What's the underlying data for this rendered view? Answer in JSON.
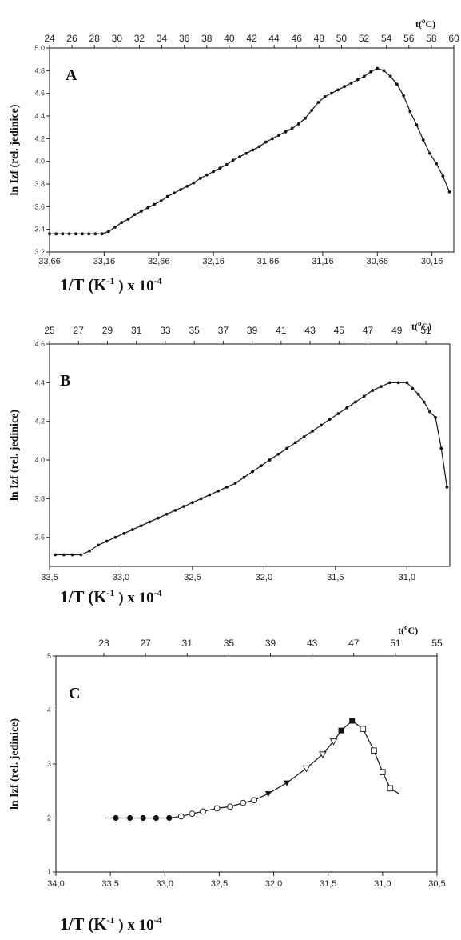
{
  "chart_data": [
    {
      "type": "scatter",
      "panel_label": "A",
      "ylabel": "ln Izf (rel. jedinice)",
      "xlabel": "1/T  (K",
      "xlabel_unit": "-1",
      "xlabel_scale": " ) x 10",
      "xlabel_exp": "-4",
      "top_axis_title": "t(",
      "top_axis_title_sup": "o",
      "top_axis_title_end": "C)",
      "x_tick_labels": [
        "33,66",
        "33,16",
        "32,66",
        "32,16",
        "31,66",
        "31,16",
        "30,66",
        "30,16"
      ],
      "x_ticks": [
        33.66,
        33.16,
        32.66,
        32.16,
        31.66,
        31.16,
        30.66,
        30.16
      ],
      "xlim": [
        33.66,
        29.96
      ],
      "y_tick_labels": [
        "3.2",
        "3.4",
        "3.6",
        "3.8",
        "4.0",
        "4.2",
        "4.4",
        "4.6",
        "4.8",
        "5.0"
      ],
      "y_ticks": [
        3.2,
        3.4,
        3.6,
        3.8,
        4.0,
        4.2,
        4.4,
        4.6,
        4.8,
        5.0
      ],
      "ylim": [
        3.2,
        5.0
      ],
      "top_tick_labels": [
        "24",
        "26",
        "28",
        "30",
        "32",
        "34",
        "36",
        "38",
        "40",
        "42",
        "44",
        "46",
        "48",
        "50",
        "52",
        "54",
        "56",
        "58",
        "60"
      ],
      "marker": "dot",
      "series": [
        {
          "x": [
            33.66,
            33.6,
            33.54,
            33.48,
            33.42,
            33.36,
            33.3,
            33.24,
            33.18,
            33.12,
            33.06,
            33.0,
            32.94,
            32.88,
            32.82,
            32.76,
            32.7,
            32.64,
            32.58,
            32.52,
            32.46,
            32.4,
            32.34,
            32.28,
            32.22,
            32.16,
            32.1,
            32.04,
            31.98,
            31.92,
            31.86,
            31.8,
            31.74,
            31.68,
            31.62,
            31.56,
            31.5,
            31.44,
            31.38,
            31.32,
            31.26,
            31.2,
            31.14,
            31.08,
            31.02,
            30.96,
            30.9,
            30.84,
            30.78,
            30.72,
            30.66,
            30.6,
            30.54,
            30.48,
            30.42,
            30.36,
            30.3,
            30.24,
            30.18,
            30.12,
            30.06,
            30.0
          ],
          "y": [
            3.36,
            3.36,
            3.36,
            3.36,
            3.36,
            3.36,
            3.36,
            3.36,
            3.36,
            3.38,
            3.42,
            3.46,
            3.49,
            3.53,
            3.56,
            3.59,
            3.62,
            3.65,
            3.69,
            3.72,
            3.75,
            3.78,
            3.81,
            3.85,
            3.88,
            3.91,
            3.94,
            3.97,
            4.01,
            4.04,
            4.07,
            4.1,
            4.13,
            4.17,
            4.2,
            4.23,
            4.26,
            4.29,
            4.33,
            4.38,
            4.45,
            4.52,
            4.57,
            4.6,
            4.63,
            4.66,
            4.69,
            4.72,
            4.75,
            4.79,
            4.82,
            4.8,
            4.75,
            4.68,
            4.58,
            4.44,
            4.32,
            4.19,
            4.07,
            3.98,
            3.87,
            3.73
          ]
        }
      ]
    },
    {
      "type": "scatter",
      "panel_label": "B",
      "ylabel": "ln Izf (rel. jedinice)",
      "xlabel": "1/T  (K",
      "xlabel_unit": "-1",
      "xlabel_scale": " ) x 10",
      "xlabel_exp": "-4",
      "top_axis_title": "t(",
      "top_axis_title_sup": "o",
      "top_axis_title_end": "C)",
      "x_tick_labels": [
        "33,5",
        "33,0",
        "32,5",
        "32,0",
        "31,5",
        "31,0"
      ],
      "x_ticks": [
        33.5,
        33.0,
        32.5,
        32.0,
        31.5,
        31.0
      ],
      "xlim": [
        33.5,
        30.7
      ],
      "y_tick_labels": [
        "3.6",
        "3.8",
        "4.0",
        "4.2",
        "4.4",
        "4.6"
      ],
      "y_ticks": [
        3.6,
        3.8,
        4.0,
        4.2,
        4.4,
        4.6
      ],
      "ylim": [
        3.45,
        4.6
      ],
      "top_tick_labels": [
        "25",
        "27",
        "29",
        "31",
        "33",
        "35",
        "37",
        "39",
        "41",
        "43",
        "45",
        "47",
        "49",
        "51"
      ],
      "marker": "dot",
      "series": [
        {
          "x": [
            33.46,
            33.4,
            33.34,
            33.28,
            33.22,
            33.16,
            33.1,
            33.04,
            32.98,
            32.92,
            32.86,
            32.8,
            32.74,
            32.68,
            32.62,
            32.56,
            32.5,
            32.44,
            32.38,
            32.32,
            32.26,
            32.2,
            32.14,
            32.08,
            32.02,
            31.96,
            31.9,
            31.84,
            31.78,
            31.72,
            31.66,
            31.6,
            31.54,
            31.48,
            31.42,
            31.36,
            31.3,
            31.24,
            31.18,
            31.12,
            31.06,
            31.0,
            30.96,
            30.92,
            30.88,
            30.84,
            30.8,
            30.76,
            30.72
          ],
          "y": [
            3.51,
            3.51,
            3.51,
            3.51,
            3.53,
            3.56,
            3.58,
            3.6,
            3.62,
            3.64,
            3.66,
            3.68,
            3.7,
            3.72,
            3.74,
            3.76,
            3.78,
            3.8,
            3.82,
            3.84,
            3.86,
            3.88,
            3.91,
            3.94,
            3.97,
            4.0,
            4.03,
            4.06,
            4.09,
            4.12,
            4.15,
            4.18,
            4.21,
            4.24,
            4.27,
            4.3,
            4.33,
            4.36,
            4.38,
            4.4,
            4.4,
            4.4,
            4.37,
            4.34,
            4.3,
            4.25,
            4.22,
            4.06,
            3.86
          ]
        }
      ]
    },
    {
      "type": "scatter",
      "panel_label": "C",
      "ylabel": "ln Izf (rel. jedinice)",
      "xlabel": "1/T  (K",
      "xlabel_unit": "-1",
      "xlabel_scale": " ) x 10",
      "xlabel_exp": "-4",
      "top_axis_title": "t(",
      "top_axis_title_sup": "o",
      "top_axis_title_end": "C)",
      "x_tick_labels": [
        "34,0",
        "33,5",
        "33,0",
        "32,5",
        "32,0",
        "31,5",
        "31,0",
        "30,5"
      ],
      "x_ticks": [
        34.0,
        33.5,
        33.0,
        32.5,
        32.0,
        31.5,
        31.0,
        30.5
      ],
      "xlim": [
        34.0,
        30.5
      ],
      "y_tick_labels": [
        "1",
        "2",
        "3",
        "4",
        "5"
      ],
      "y_ticks": [
        1,
        2,
        3,
        4,
        5
      ],
      "ylim": [
        1,
        5
      ],
      "top_tick_labels": [
        "23",
        "27",
        "31",
        "35",
        "39",
        "43",
        "47",
        "51",
        "55"
      ],
      "series": [
        {
          "marker": "filled-circle",
          "x": [
            33.45,
            33.32,
            33.2,
            33.08,
            32.96
          ],
          "y": [
            2.0,
            2.0,
            2.0,
            2.0,
            2.0
          ]
        },
        {
          "marker": "open-circle",
          "x": [
            32.85,
            32.75,
            32.65,
            32.52,
            32.4,
            32.28,
            32.18
          ],
          "y": [
            2.03,
            2.08,
            2.12,
            2.18,
            2.21,
            2.28,
            2.33
          ]
        },
        {
          "marker": "filled-triangle-down",
          "x": [
            32.05,
            31.88
          ],
          "y": [
            2.45,
            2.65
          ]
        },
        {
          "marker": "open-triangle-down",
          "x": [
            31.7,
            31.55,
            31.45
          ],
          "y": [
            2.92,
            3.18,
            3.42
          ]
        },
        {
          "marker": "filled-square",
          "x": [
            31.38,
            31.28
          ],
          "y": [
            3.62,
            3.8
          ]
        },
        {
          "marker": "open-square",
          "x": [
            31.18,
            31.08,
            31.0,
            30.93
          ],
          "y": [
            3.65,
            3.25,
            2.85,
            2.55
          ]
        }
      ]
    }
  ]
}
